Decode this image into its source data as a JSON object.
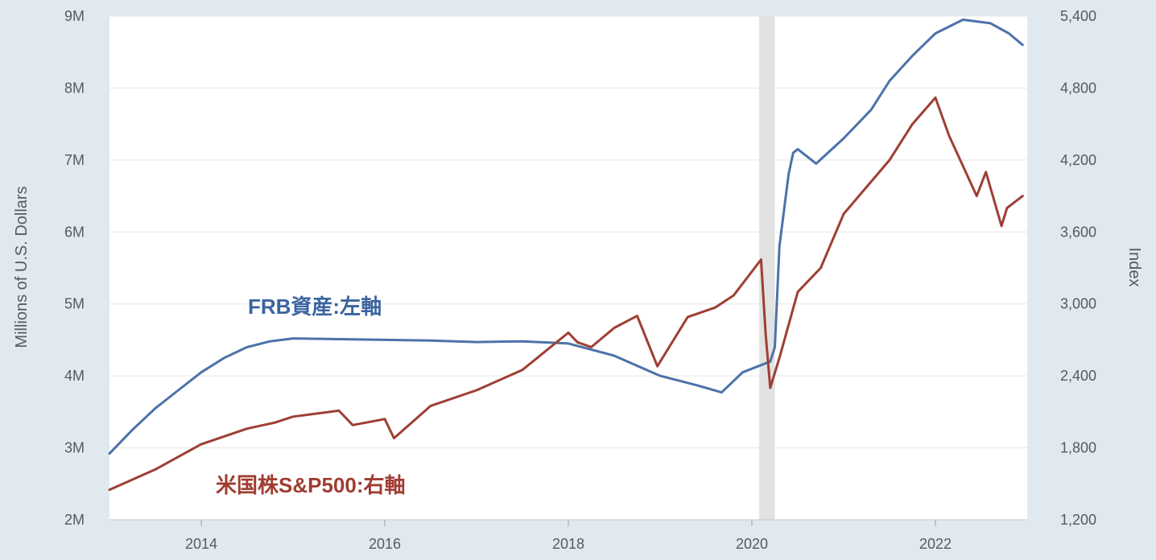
{
  "chart_data": {
    "type": "line",
    "left_axis_title": "Millions of U.S. Dollars",
    "right_axis_title": "Index",
    "x_range": [
      2013.0,
      2023.0
    ],
    "x_ticks": [
      "2014",
      "2016",
      "2018",
      "2020",
      "2022"
    ],
    "y_left_range": [
      2000000,
      9000000
    ],
    "y_left_ticks": [
      "2M",
      "3M",
      "4M",
      "5M",
      "6M",
      "7M",
      "8M",
      "9M"
    ],
    "y_right_range": [
      1200,
      5400
    ],
    "y_right_ticks": [
      "1,200",
      "1,800",
      "2,400",
      "3,000",
      "3,600",
      "4,200",
      "4,800",
      "5,400"
    ],
    "grid": true,
    "recession_band": [
      2020.08,
      2020.25
    ],
    "annotations": [
      {
        "text": "FRB資産:左軸",
        "color": "#3c64a0"
      },
      {
        "text": "米国株S&P500:右軸",
        "color": "#a03c32"
      }
    ],
    "series": [
      {
        "axis": "left",
        "color": "#4c72a9",
        "x": [
          2013.0,
          2013.25,
          2013.5,
          2013.75,
          2014.0,
          2014.25,
          2014.5,
          2014.75,
          2015.0,
          2015.5,
          2016.0,
          2016.5,
          2017.0,
          2017.5,
          2018.0,
          2018.5,
          2019.0,
          2019.4,
          2019.67,
          2019.9,
          2020.2,
          2020.25,
          2020.3,
          2020.4,
          2020.45,
          2020.5,
          2020.7,
          2021.0,
          2021.3,
          2021.5,
          2021.75,
          2022.0,
          2022.3,
          2022.6,
          2022.8,
          2022.95
        ],
        "values": [
          2920000,
          3250000,
          3550000,
          3800000,
          4050000,
          4250000,
          4400000,
          4480000,
          4520000,
          4510000,
          4500000,
          4490000,
          4470000,
          4480000,
          4450000,
          4280000,
          4000000,
          3870000,
          3770000,
          4050000,
          4200000,
          4400000,
          5800000,
          6800000,
          7100000,
          7150000,
          6950000,
          7300000,
          7700000,
          8100000,
          8450000,
          8760000,
          8950000,
          8900000,
          8760000,
          8600000
        ]
      },
      {
        "axis": "right",
        "color": "#9e3f34",
        "x": [
          2013.0,
          2013.5,
          2014.0,
          2014.5,
          2014.8,
          2015.0,
          2015.5,
          2015.65,
          2016.0,
          2016.1,
          2016.5,
          2017.0,
          2017.5,
          2018.0,
          2018.1,
          2018.25,
          2018.5,
          2018.75,
          2018.97,
          2019.3,
          2019.6,
          2019.8,
          2020.1,
          2020.15,
          2020.2,
          2020.3,
          2020.5,
          2020.75,
          2021.0,
          2021.5,
          2021.75,
          2022.0,
          2022.15,
          2022.45,
          2022.55,
          2022.72,
          2022.78,
          2022.95
        ],
        "values": [
          1450,
          1620,
          1830,
          1960,
          2010,
          2060,
          2110,
          1990,
          2040,
          1880,
          2150,
          2280,
          2450,
          2760,
          2680,
          2640,
          2800,
          2900,
          2480,
          2890,
          2970,
          3070,
          3370,
          2750,
          2300,
          2550,
          3100,
          3300,
          3750,
          4200,
          4500,
          4720,
          4400,
          3900,
          4100,
          3650,
          3800,
          3900
        ]
      }
    ]
  }
}
